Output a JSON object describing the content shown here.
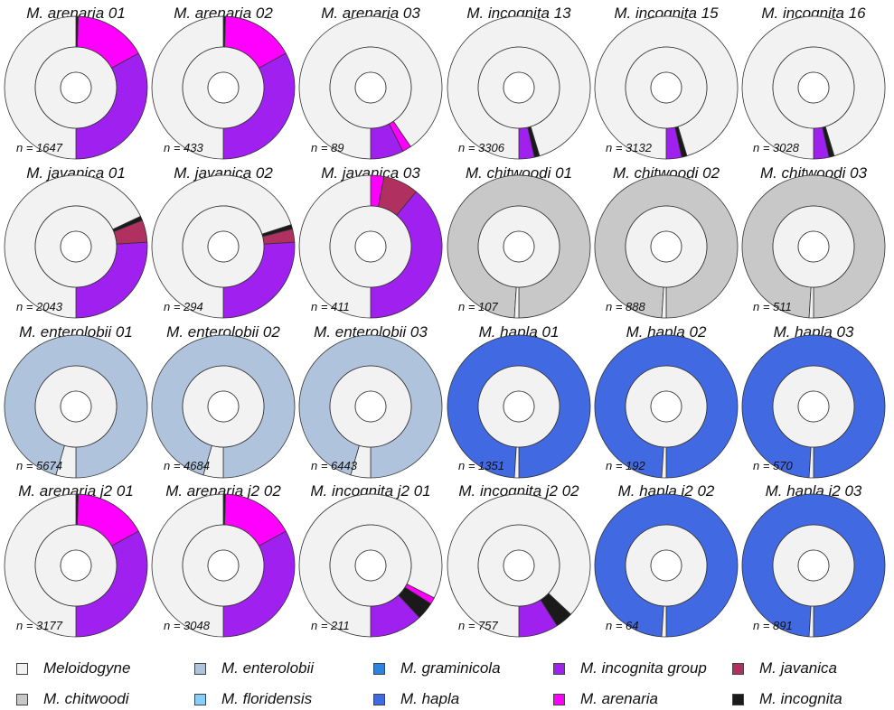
{
  "legend": [
    {
      "key": "meloidogyne",
      "label": "Meloidogyne",
      "color": "#f2f2f2"
    },
    {
      "key": "enterolobii",
      "label": "M. enterolobii",
      "color": "#afc3dc"
    },
    {
      "key": "graminicola",
      "label": "M. graminicola",
      "color": "#2a84e0"
    },
    {
      "key": "incognita_group",
      "label": "M. incognita group",
      "color": "#a020f0"
    },
    {
      "key": "javanica",
      "label": "M. javanica",
      "color": "#b03060"
    },
    {
      "key": "chitwoodi",
      "label": "M. chitwoodi",
      "color": "#c8c8c8"
    },
    {
      "key": "floridensis",
      "label": "M. floridensis",
      "color": "#87cefa"
    },
    {
      "key": "hapla",
      "label": "M. hapla",
      "color": "#4169e1"
    },
    {
      "key": "arenaria",
      "label": "M. arenaria",
      "color": "#ff00ff"
    },
    {
      "key": "incognita",
      "label": "M. incognita",
      "color": "#1a1a1a"
    }
  ],
  "chart_data": [
    {
      "type": "pie",
      "title": "M. arenaria 01",
      "n_label": "n = 1647",
      "inner": {
        "meloidogyne": 1.0
      },
      "outer": {
        "incognita_group": 0.33,
        "arenaria": 0.165,
        "incognita": 0.005,
        "meloidogyne": 0.5
      }
    },
    {
      "type": "pie",
      "title": "M. arenaria 02",
      "n_label": "n = 433",
      "inner": {
        "meloidogyne": 1.0
      },
      "outer": {
        "incognita_group": 0.33,
        "arenaria": 0.165,
        "incognita": 0.005,
        "meloidogyne": 0.5
      }
    },
    {
      "type": "pie",
      "title": "M. arenaria 03",
      "n_label": "n = 89",
      "inner": {
        "meloidogyne": 1.0
      },
      "outer": {
        "incognita_group": 0.075,
        "arenaria": 0.02,
        "meloidogyne": 0.905
      }
    },
    {
      "type": "pie",
      "title": "M. incognita 13",
      "n_label": "n = 3306",
      "inner": {
        "meloidogyne": 1.0
      },
      "outer": {
        "incognita_group": 0.035,
        "incognita": 0.012,
        "meloidogyne": 0.953
      }
    },
    {
      "type": "pie",
      "title": "M. incognita 15",
      "n_label": "n = 3132",
      "inner": {
        "meloidogyne": 1.0
      },
      "outer": {
        "incognita_group": 0.035,
        "incognita": 0.012,
        "meloidogyne": 0.953
      }
    },
    {
      "type": "pie",
      "title": "M. incognita 16",
      "n_label": "n = 3028",
      "inner": {
        "meloidogyne": 1.0
      },
      "outer": {
        "incognita_group": 0.035,
        "incognita": 0.012,
        "meloidogyne": 0.953
      }
    },
    {
      "type": "pie",
      "title": "M. javanica 01",
      "n_label": "n = 2043",
      "inner": {
        "meloidogyne": 1.0
      },
      "outer": {
        "incognita_group": 0.26,
        "javanica": 0.05,
        "incognita": 0.01,
        "meloidogyne": 0.68
      }
    },
    {
      "type": "pie",
      "title": "M. javanica 02",
      "n_label": "n = 294",
      "inner": {
        "meloidogyne": 1.0
      },
      "outer": {
        "incognita_group": 0.26,
        "javanica": 0.03,
        "incognita": 0.01,
        "meloidogyne": 0.7
      }
    },
    {
      "type": "pie",
      "title": "M. javanica 03",
      "n_label": "n = 411",
      "inner": {
        "meloidogyne": 1.0
      },
      "outer": {
        "incognita_group": 0.39,
        "javanica": 0.08,
        "arenaria": 0.03,
        "meloidogyne": 0.5
      }
    },
    {
      "type": "pie",
      "title": "M. chitwoodi 01",
      "n_label": "n = 107",
      "inner": {
        "meloidogyne": 1.0
      },
      "outer": {
        "chitwoodi": 0.99,
        "meloidogyne": 0.01
      }
    },
    {
      "type": "pie",
      "title": "M. chitwoodi 02",
      "n_label": "n = 888",
      "inner": {
        "meloidogyne": 1.0
      },
      "outer": {
        "chitwoodi": 0.99,
        "meloidogyne": 0.01
      }
    },
    {
      "type": "pie",
      "title": "M. chitwoodi 03",
      "n_label": "n = 511",
      "inner": {
        "meloidogyne": 1.0
      },
      "outer": {
        "chitwoodi": 0.99,
        "meloidogyne": 0.01
      }
    },
    {
      "type": "pie",
      "title": "M. enterolobii 01",
      "n_label": "n = 5674",
      "inner": {
        "meloidogyne": 1.0
      },
      "outer": {
        "enterolobii": 0.955,
        "meloidogyne": 0.045
      }
    },
    {
      "type": "pie",
      "title": "M. enterolobii 02",
      "n_label": "n = 4684",
      "inner": {
        "meloidogyne": 1.0
      },
      "outer": {
        "enterolobii": 0.955,
        "meloidogyne": 0.045
      }
    },
    {
      "type": "pie",
      "title": "M. enterolobii 03",
      "n_label": "n = 6443",
      "inner": {
        "meloidogyne": 1.0
      },
      "outer": {
        "enterolobii": 0.955,
        "meloidogyne": 0.045
      }
    },
    {
      "type": "pie",
      "title": "M. hapla 01",
      "n_label": "n = 1351",
      "inner": {
        "meloidogyne": 1.0
      },
      "outer": {
        "hapla": 0.99,
        "meloidogyne": 0.01
      }
    },
    {
      "type": "pie",
      "title": "M. hapla 02",
      "n_label": "n = 192",
      "inner": {
        "meloidogyne": 1.0
      },
      "outer": {
        "hapla": 0.99,
        "meloidogyne": 0.01
      }
    },
    {
      "type": "pie",
      "title": "M. hapla 03",
      "n_label": "n = 570",
      "inner": {
        "meloidogyne": 1.0
      },
      "outer": {
        "hapla": 0.99,
        "meloidogyne": 0.01
      }
    },
    {
      "type": "pie",
      "title": "M. arenaria j2 01",
      "n_label": "n = 3177",
      "inner": {
        "meloidogyne": 1.0
      },
      "outer": {
        "incognita_group": 0.33,
        "arenaria": 0.165,
        "incognita": 0.005,
        "meloidogyne": 0.5
      }
    },
    {
      "type": "pie",
      "title": "M. arenaria j2 02",
      "n_label": "n = 3048",
      "inner": {
        "meloidogyne": 1.0
      },
      "outer": {
        "incognita_group": 0.33,
        "arenaria": 0.165,
        "incognita": 0.005,
        "meloidogyne": 0.5
      }
    },
    {
      "type": "pie",
      "title": "M. incognita j2 01",
      "n_label": "n = 211",
      "inner": {
        "meloidogyne": 1.0
      },
      "outer": {
        "incognita_group": 0.12,
        "incognita": 0.04,
        "arenaria": 0.015,
        "meloidogyne": 0.825
      }
    },
    {
      "type": "pie",
      "title": "M. incognita j2 02",
      "n_label": "n = 757",
      "inner": {
        "meloidogyne": 1.0
      },
      "outer": {
        "incognita_group": 0.09,
        "incognita": 0.04,
        "meloidogyne": 0.87
      }
    },
    {
      "type": "pie",
      "title": "M. hapla j2 02",
      "n_label": "n = 64",
      "inner": {
        "meloidogyne": 1.0
      },
      "outer": {
        "hapla": 0.99,
        "meloidogyne": 0.01
      }
    },
    {
      "type": "pie",
      "title": "M. hapla j2 03",
      "n_label": "n = 891",
      "inner": {
        "meloidogyne": 1.0
      },
      "outer": {
        "hapla": 0.99,
        "meloidogyne": 0.01
      }
    }
  ]
}
